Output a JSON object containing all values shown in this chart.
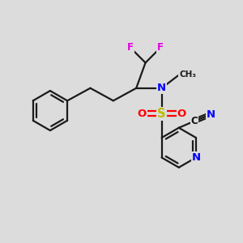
{
  "bg_color": "#dcdcdc",
  "bond_color": "#1a1a1a",
  "bond_lw": 1.6,
  "colors": {
    "F": "#e000e0",
    "N": "#0000ff",
    "S": "#bbbb00",
    "O": "#ff0000",
    "C": "#111111",
    "black": "#1a1a1a"
  },
  "figsize": [
    3.0,
    3.0
  ],
  "dpi": 100
}
